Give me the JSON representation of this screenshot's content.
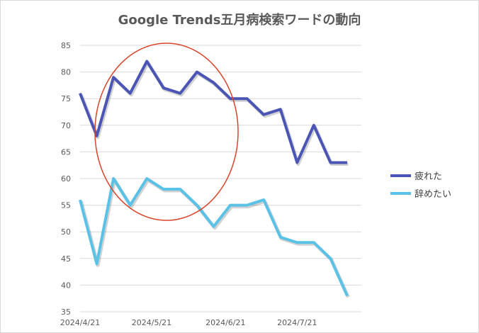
{
  "chart_data": {
    "type": "line",
    "title": "Google Trends五月病検索ワードの動向",
    "ylim": [
      35,
      85
    ],
    "y_ticks": [
      35,
      40,
      45,
      50,
      55,
      60,
      65,
      70,
      75,
      80,
      85
    ],
    "x": [
      "2024-04-21",
      "2024-04-28",
      "2024-05-05",
      "2024-05-12",
      "2024-05-19",
      "2024-05-26",
      "2024-06-02",
      "2024-06-09",
      "2024-06-16",
      "2024-06-23",
      "2024-06-30",
      "2024-07-07",
      "2024-07-14",
      "2024-07-21",
      "2024-07-28",
      "2024-08-04",
      "2024-08-11"
    ],
    "x_tick_labels": [
      "2024/4/21",
      "2024/5/21",
      "2024/6/21",
      "2024/7/21"
    ],
    "grid": true,
    "legend_position": "right",
    "series": [
      {
        "name": "疲れた",
        "color": "#4a55b5",
        "values": [
          76,
          68,
          79,
          76,
          82,
          77,
          76,
          80,
          78,
          75,
          75,
          72,
          73,
          63,
          70,
          63,
          63
        ]
      },
      {
        "name": "辞めたい",
        "color": "#5bc2e7",
        "values": [
          56,
          44,
          60,
          55,
          60,
          58,
          58,
          55,
          51,
          55,
          55,
          56,
          49,
          48,
          48,
          45,
          38
        ]
      }
    ],
    "annotation": {
      "type": "ellipse",
      "color": "#d9452b"
    }
  }
}
